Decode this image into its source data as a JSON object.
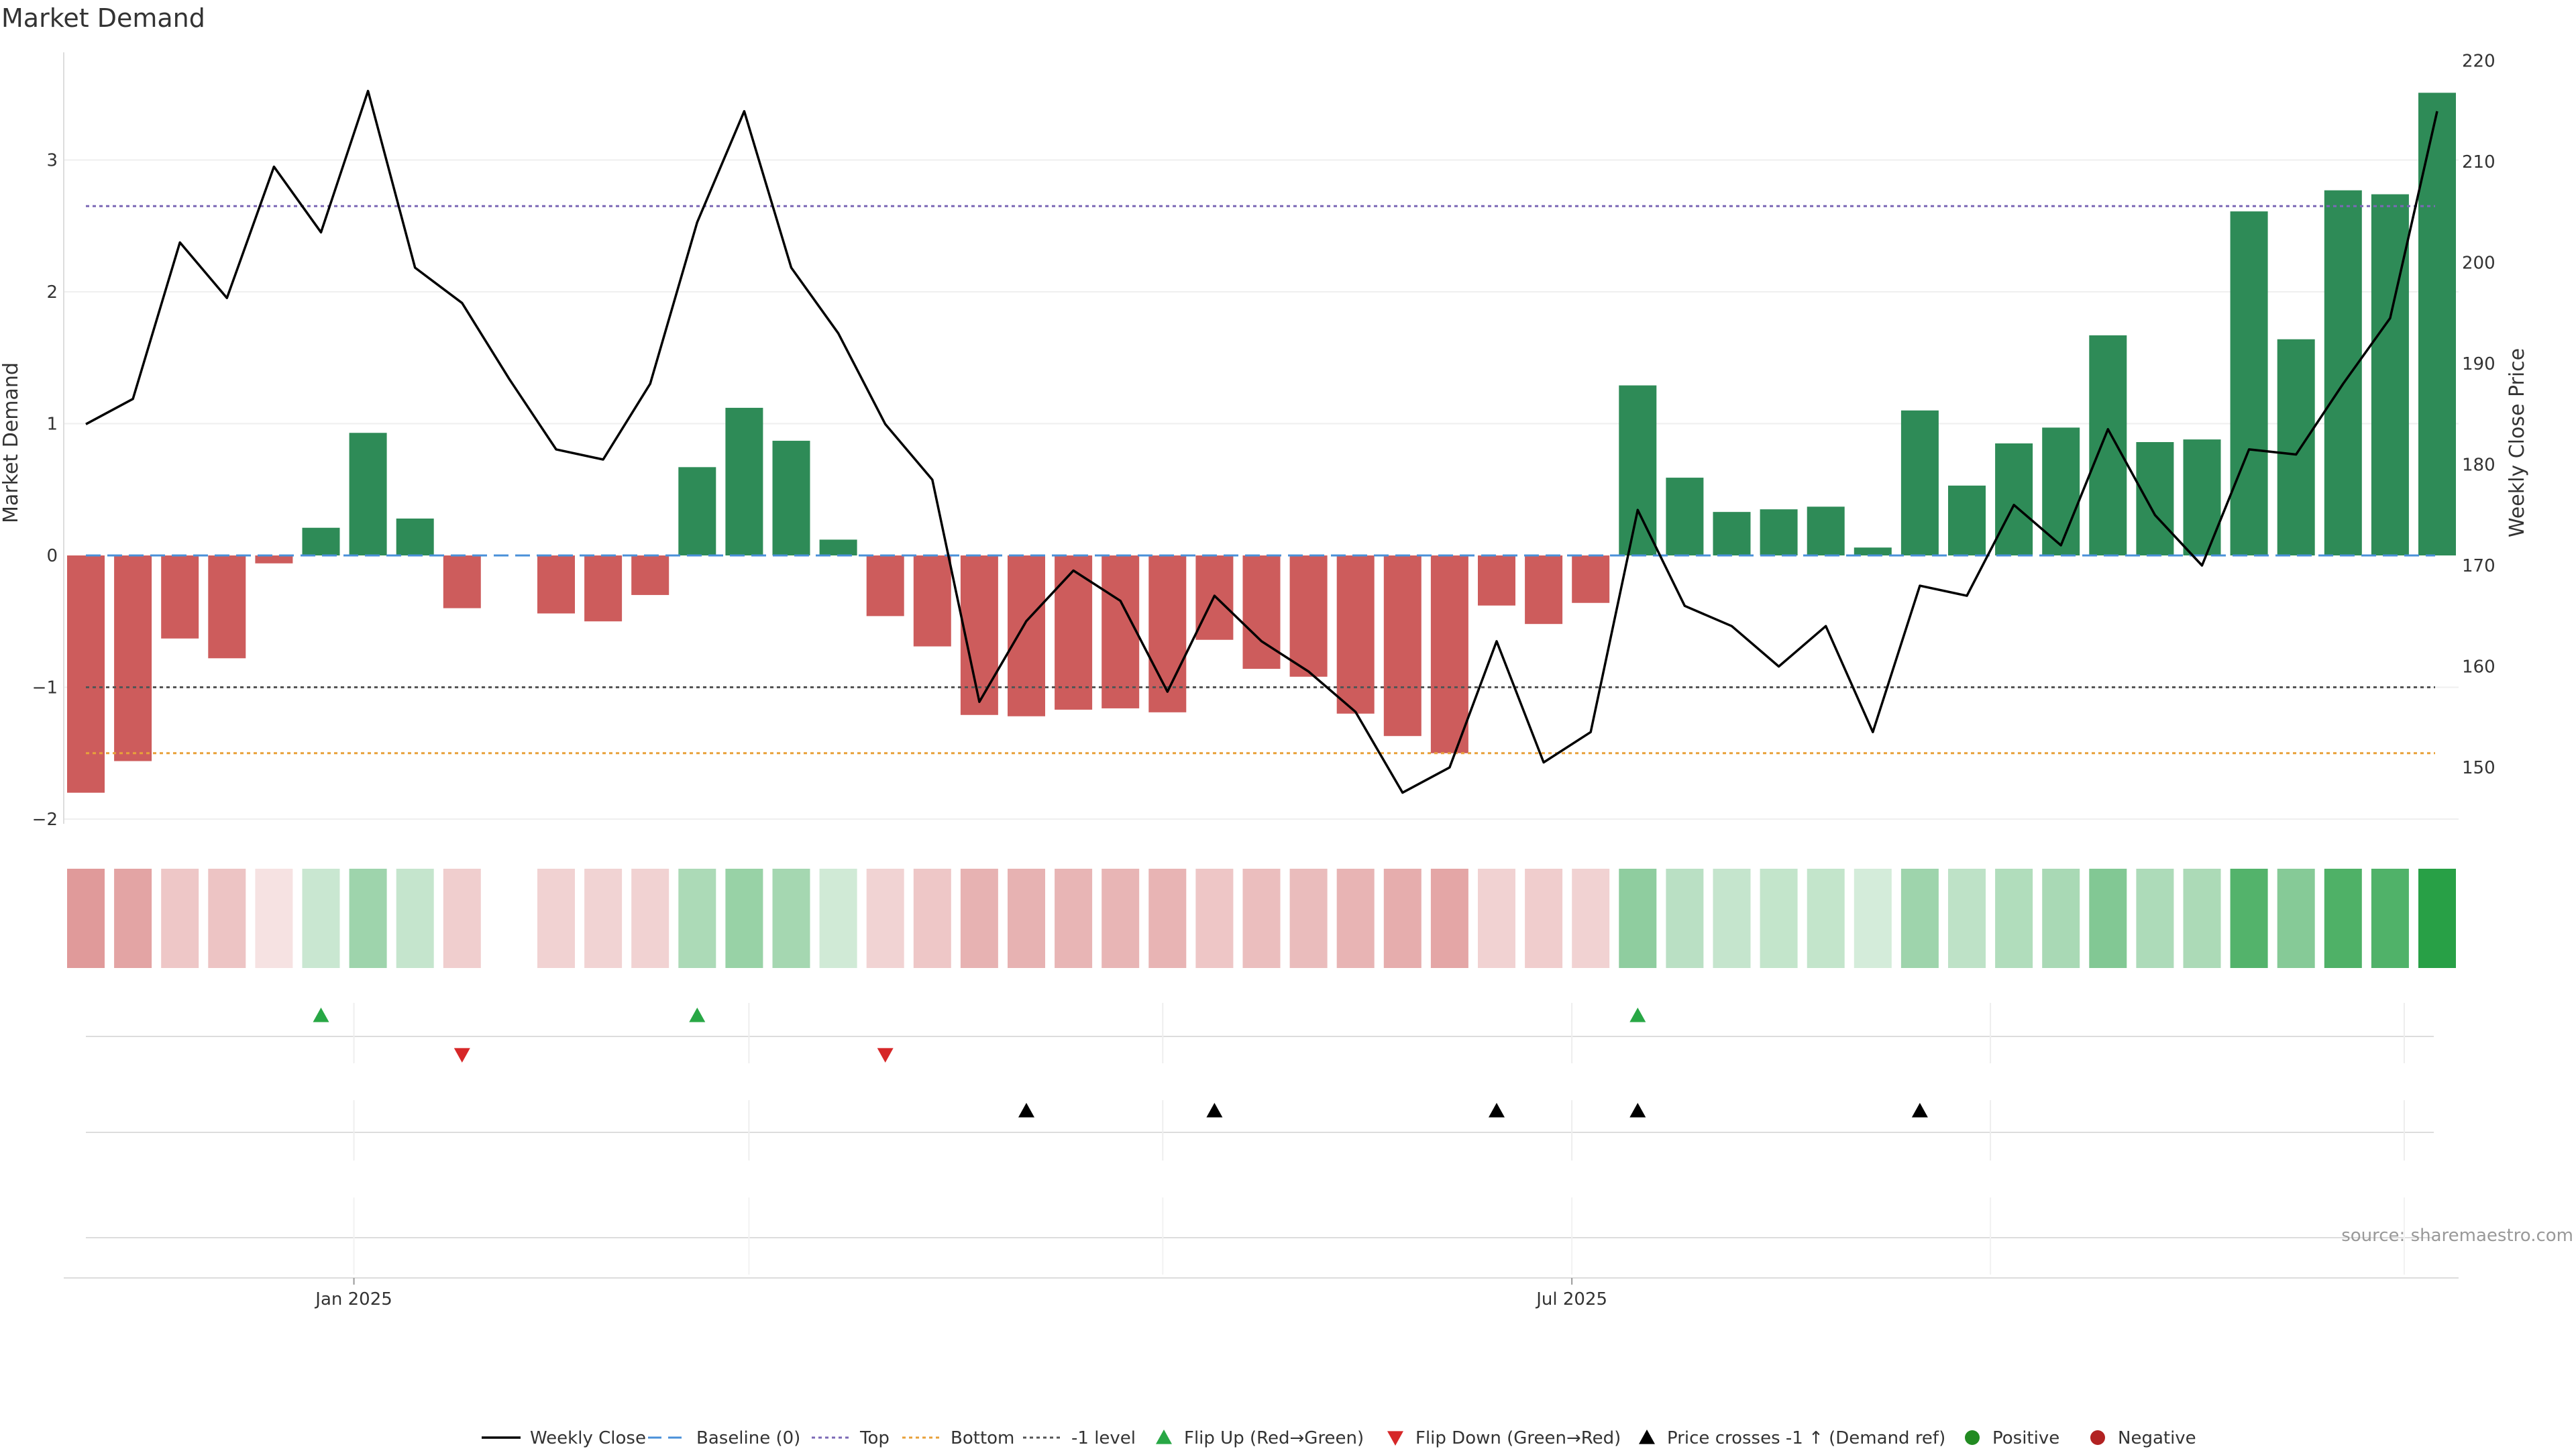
{
  "colors": {
    "positive": "#2e8b57",
    "negative": "#cd5c5c",
    "price_line": "#000000",
    "baseline": "#4a90d9",
    "top": "#7b68b6",
    "bottom": "#e8a13a",
    "minus_one": "#555555",
    "flip_up": "#28a745",
    "flip_down": "#d62728",
    "price_cross": "#000000",
    "legend_positive": "#228b22",
    "legend_negative": "#b22222",
    "heat_positive_rgb": [
      40,
      160,
      70
    ],
    "heat_negative_rgb": [
      205,
      92,
      92
    ]
  },
  "chart_data": {
    "type": "bar",
    "title": "Market Demand",
    "ylabel_left": "Market Demand",
    "ylabel_right": "Weekly Close Price",
    "ylim_left": [
      -2.0,
      3.8
    ],
    "ylim_right": [
      143,
      220
    ],
    "yticks_left": [
      3,
      2,
      1,
      0,
      -1,
      -2
    ],
    "yticks_left_labels": [
      "3",
      "2",
      "1",
      "0",
      "−1",
      "−2"
    ],
    "yticks_right": [
      220,
      210,
      200,
      190,
      180,
      170,
      160,
      150
    ],
    "x_tick_labels": [
      "Jan 2025",
      "Jul 2025"
    ],
    "x_tick_weeks": [
      5.7,
      31.6
    ],
    "reference_lines": {
      "baseline": 0,
      "top": 2.65,
      "bottom": -1.5,
      "minus_one": -1
    },
    "source": "source: sharemaestro.com",
    "weeks": 51,
    "missing_weeks": [
      9
    ],
    "demand": [
      -1.8,
      -1.56,
      -0.63,
      -0.78,
      -0.06,
      0.21,
      0.93,
      0.28,
      -0.4,
      null,
      -0.44,
      -0.5,
      -0.3,
      0.67,
      1.12,
      0.87,
      0.12,
      -0.46,
      -0.69,
      -1.21,
      -1.22,
      -1.17,
      -1.16,
      -1.19,
      -0.64,
      -0.86,
      -0.92,
      -1.2,
      -1.37,
      -1.5,
      -0.38,
      -0.52,
      -0.36,
      1.29,
      0.59,
      0.33,
      0.35,
      0.37,
      0.06,
      1.1,
      0.53,
      0.85,
      0.97,
      1.67,
      0.86,
      0.88,
      2.61,
      1.64,
      2.77,
      2.74,
      3.51
    ],
    "weekly_close": [
      184,
      186.5,
      202,
      196.5,
      209.5,
      203,
      217,
      199.5,
      196,
      188.5,
      181.5,
      180.5,
      188,
      204,
      215,
      199.5,
      193,
      184,
      178.5,
      156.5,
      164.5,
      169.5,
      166.5,
      157.5,
      167,
      162.5,
      159.5,
      155.5,
      147.5,
      150,
      162.5,
      150.5,
      153.5,
      175.5,
      166,
      164,
      160,
      164,
      153.5,
      168,
      167,
      176,
      172,
      183.5,
      175,
      170,
      181.5,
      181,
      188,
      194.5,
      215
    ],
    "heat_intensity": [
      0.62,
      0.56,
      0.34,
      0.36,
      0.18,
      0.25,
      0.45,
      0.27,
      0.3,
      null,
      0.28,
      0.27,
      0.28,
      0.39,
      0.48,
      0.42,
      0.22,
      0.27,
      0.34,
      0.47,
      0.47,
      0.45,
      0.45,
      0.46,
      0.35,
      0.4,
      0.41,
      0.46,
      0.5,
      0.55,
      0.28,
      0.31,
      0.28,
      0.52,
      0.32,
      0.27,
      0.28,
      0.28,
      0.2,
      0.45,
      0.3,
      0.36,
      0.4,
      0.58,
      0.38,
      0.39,
      0.8,
      0.56,
      0.82,
      0.81,
      1.0
    ],
    "flip_up_weeks": [
      5,
      13,
      33
    ],
    "flip_down_weeks": [
      8,
      17
    ],
    "price_cross_weeks": [
      20,
      24,
      30,
      33,
      39
    ],
    "legend": [
      {
        "label": "Weekly Close",
        "kind": "line",
        "color_key": "price_line"
      },
      {
        "label": "Baseline (0)",
        "kind": "dashed",
        "color_key": "baseline"
      },
      {
        "label": "Top",
        "kind": "dotted",
        "color_key": "top"
      },
      {
        "label": "Bottom",
        "kind": "dotted",
        "color_key": "bottom"
      },
      {
        "label": "-1 level",
        "kind": "dotted",
        "color_key": "minus_one"
      },
      {
        "label": "Flip Up (Red→Green)",
        "kind": "tri-up",
        "color_key": "flip_up"
      },
      {
        "label": "Flip Down (Green→Red)",
        "kind": "tri-down",
        "color_key": "flip_down"
      },
      {
        "label": "Price crosses -1 ↑ (Demand ref)",
        "kind": "tri-up",
        "color_key": "price_cross"
      },
      {
        "label": "Positive",
        "kind": "dot",
        "color_key": "legend_positive"
      },
      {
        "label": "Negative",
        "kind": "dot",
        "color_key": "legend_negative"
      }
    ]
  }
}
